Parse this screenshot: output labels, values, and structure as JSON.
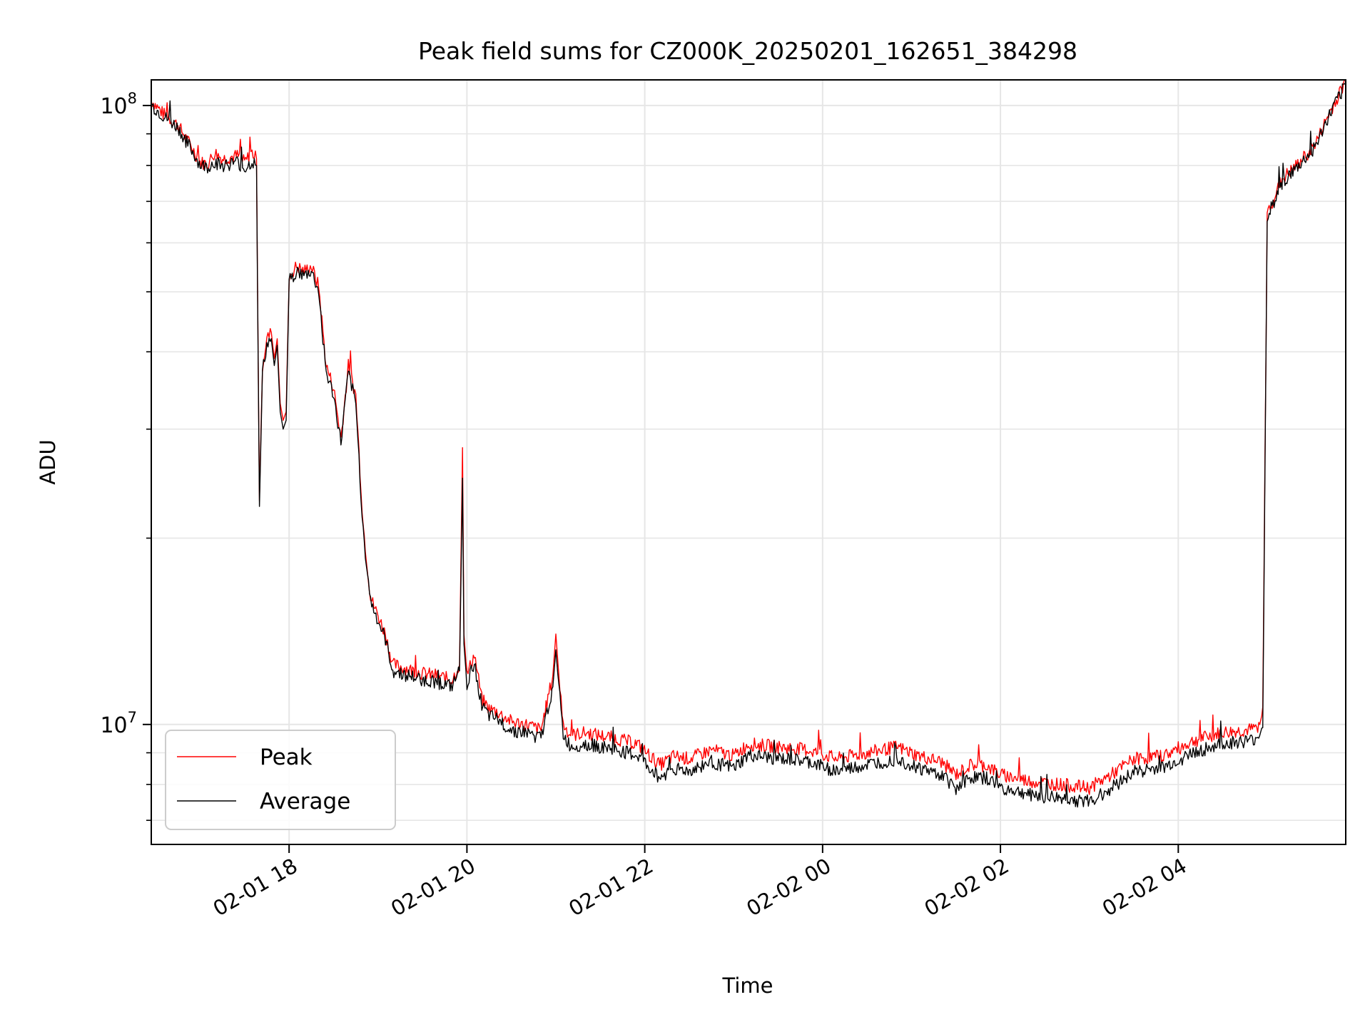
{
  "chart_data": {
    "type": "line",
    "title": "Peak field sums for CZ000K_20250201_162651_384298",
    "xlabel": "Time",
    "ylabel": "ADU",
    "y_scale": "log",
    "grid": true,
    "legend_position": "lower-left",
    "xlim": [
      "2025-02-01 16:27",
      "2025-02-02 05:53"
    ],
    "ylim": [
      6400000,
      110000000
    ],
    "x_ticks": [
      {
        "value": "2025-02-01 18:00",
        "label": "02-01 18"
      },
      {
        "value": "2025-02-01 20:00",
        "label": "02-01 20"
      },
      {
        "value": "2025-02-01 22:00",
        "label": "02-01 22"
      },
      {
        "value": "2025-02-02 00:00",
        "label": "02-02 00"
      },
      {
        "value": "2025-02-02 02:00",
        "label": "02-02 02"
      },
      {
        "value": "2025-02-02 04:00",
        "label": "02-02 04"
      }
    ],
    "y_ticks": [
      {
        "value": 10000000,
        "base": "10",
        "exp": "7"
      },
      {
        "value": 100000000,
        "base": "10",
        "exp": "8"
      }
    ],
    "series": [
      {
        "name": "Peak",
        "color": "#ff0000",
        "x": [
          "2025-02-01 16:27",
          "2025-02-01 16:35",
          "2025-02-01 16:45",
          "2025-02-01 16:55",
          "2025-02-01 17:00",
          "2025-02-01 17:05",
          "2025-02-01 17:10",
          "2025-02-01 17:15",
          "2025-02-01 17:25",
          "2025-02-01 17:30",
          "2025-02-01 17:35",
          "2025-02-01 17:38",
          "2025-02-01 17:40",
          "2025-02-01 17:42",
          "2025-02-01 17:45",
          "2025-02-01 17:48",
          "2025-02-01 17:50",
          "2025-02-01 17:52",
          "2025-02-01 17:54",
          "2025-02-01 17:56",
          "2025-02-01 17:58",
          "2025-02-01 18:00",
          "2025-02-01 18:05",
          "2025-02-01 18:10",
          "2025-02-01 18:15",
          "2025-02-01 18:20",
          "2025-02-01 18:25",
          "2025-02-01 18:30",
          "2025-02-01 18:35",
          "2025-02-01 18:40",
          "2025-02-01 18:45",
          "2025-02-01 18:50",
          "2025-02-01 18:55",
          "2025-02-01 19:00",
          "2025-02-01 19:05",
          "2025-02-01 19:10",
          "2025-02-01 19:20",
          "2025-02-01 19:30",
          "2025-02-01 19:40",
          "2025-02-01 19:50",
          "2025-02-01 19:55",
          "2025-02-01 19:57",
          "2025-02-01 19:58",
          "2025-02-01 20:00",
          "2025-02-01 20:05",
          "2025-02-01 20:10",
          "2025-02-01 20:15",
          "2025-02-01 20:20",
          "2025-02-01 20:30",
          "2025-02-01 20:40",
          "2025-02-01 20:50",
          "2025-02-01 20:58",
          "2025-02-01 21:00",
          "2025-02-01 21:02",
          "2025-02-01 21:05",
          "2025-02-01 21:10",
          "2025-02-01 21:20",
          "2025-02-01 21:40",
          "2025-02-01 21:55",
          "2025-02-01 22:10",
          "2025-02-01 22:20",
          "2025-02-01 22:30",
          "2025-02-01 22:45",
          "2025-02-01 23:00",
          "2025-02-01 23:10",
          "2025-02-01 23:30",
          "2025-02-01 23:50",
          "2025-02-02 00:10",
          "2025-02-02 00:30",
          "2025-02-02 00:50",
          "2025-02-02 01:05",
          "2025-02-02 01:20",
          "2025-02-02 01:30",
          "2025-02-02 01:40",
          "2025-02-02 01:50",
          "2025-02-02 02:00",
          "2025-02-02 02:20",
          "2025-02-02 02:40",
          "2025-02-02 03:00",
          "2025-02-02 03:15",
          "2025-02-02 03:30",
          "2025-02-02 03:50",
          "2025-02-02 04:10",
          "2025-02-02 04:30",
          "2025-02-02 04:50",
          "2025-02-02 04:55",
          "2025-02-02 04:57",
          "2025-02-02 05:00",
          "2025-02-02 05:10",
          "2025-02-02 05:20",
          "2025-02-02 05:30",
          "2025-02-02 05:35",
          "2025-02-02 05:40",
          "2025-02-02 05:50",
          "2025-02-02 05:53"
        ],
        "y": [
          102000000,
          97000000,
          93000000,
          85000000,
          81000000,
          80500000,
          84000000,
          82000000,
          83000000,
          81000000,
          84000000,
          82000000,
          23000000,
          38000000,
          42000000,
          43000000,
          39000000,
          42000000,
          33000000,
          31000000,
          32000000,
          53000000,
          55000000,
          54000000,
          55000000,
          51000000,
          38000000,
          35000000,
          29000000,
          38000000,
          34000000,
          21000000,
          16000000,
          15000000,
          14000000,
          12500000,
          12300000,
          12100000,
          12000000,
          11800000,
          12500000,
          28000000,
          14000000,
          12000000,
          13000000,
          11000000,
          10600000,
          10500000,
          10100000,
          10000000,
          9800000,
          12000000,
          14000000,
          12000000,
          10000000,
          9600000,
          9700000,
          9500000,
          9300000,
          8600000,
          8900000,
          8800000,
          9100000,
          8900000,
          9300000,
          9200000,
          9100000,
          8800000,
          9000000,
          9200000,
          8900000,
          8700000,
          8300000,
          8600000,
          8600000,
          8300000,
          8100000,
          8000000,
          7900000,
          8300000,
          8800000,
          8900000,
          9400000,
          9700000,
          9800000,
          10000000,
          10500000,
          67000000,
          76000000,
          80000000,
          85000000,
          89000000,
          95000000,
          106000000,
          110000000
        ]
      },
      {
        "name": "Average",
        "color": "#000000",
        "x": [
          "2025-02-01 16:27",
          "2025-02-01 16:35",
          "2025-02-01 16:45",
          "2025-02-01 16:55",
          "2025-02-01 17:00",
          "2025-02-01 17:05",
          "2025-02-01 17:10",
          "2025-02-01 17:15",
          "2025-02-01 17:25",
          "2025-02-01 17:30",
          "2025-02-01 17:35",
          "2025-02-01 17:38",
          "2025-02-01 17:40",
          "2025-02-01 17:42",
          "2025-02-01 17:45",
          "2025-02-01 17:48",
          "2025-02-01 17:50",
          "2025-02-01 17:52",
          "2025-02-01 17:54",
          "2025-02-01 17:56",
          "2025-02-01 17:58",
          "2025-02-01 18:00",
          "2025-02-01 18:05",
          "2025-02-01 18:10",
          "2025-02-01 18:15",
          "2025-02-01 18:20",
          "2025-02-01 18:25",
          "2025-02-01 18:30",
          "2025-02-01 18:35",
          "2025-02-01 18:40",
          "2025-02-01 18:45",
          "2025-02-01 18:50",
          "2025-02-01 18:55",
          "2025-02-01 19:00",
          "2025-02-01 19:05",
          "2025-02-01 19:10",
          "2025-02-01 19:20",
          "2025-02-01 19:30",
          "2025-02-01 19:40",
          "2025-02-01 19:50",
          "2025-02-01 19:55",
          "2025-02-01 19:57",
          "2025-02-01 19:58",
          "2025-02-01 20:00",
          "2025-02-01 20:05",
          "2025-02-01 20:10",
          "2025-02-01 20:15",
          "2025-02-01 20:20",
          "2025-02-01 20:30",
          "2025-02-01 20:40",
          "2025-02-01 20:50",
          "2025-02-01 20:58",
          "2025-02-01 21:00",
          "2025-02-01 21:02",
          "2025-02-01 21:05",
          "2025-02-01 21:10",
          "2025-02-01 21:20",
          "2025-02-01 21:40",
          "2025-02-01 21:55",
          "2025-02-01 22:10",
          "2025-02-01 22:20",
          "2025-02-01 22:30",
          "2025-02-01 22:45",
          "2025-02-01 23:00",
          "2025-02-01 23:10",
          "2025-02-01 23:30",
          "2025-02-01 23:50",
          "2025-02-02 00:10",
          "2025-02-02 00:30",
          "2025-02-02 00:50",
          "2025-02-02 01:05",
          "2025-02-02 01:20",
          "2025-02-02 01:30",
          "2025-02-02 01:40",
          "2025-02-02 01:50",
          "2025-02-02 02:00",
          "2025-02-02 02:20",
          "2025-02-02 02:40",
          "2025-02-02 03:00",
          "2025-02-02 03:15",
          "2025-02-02 03:30",
          "2025-02-02 03:50",
          "2025-02-02 04:10",
          "2025-02-02 04:30",
          "2025-02-02 04:50",
          "2025-02-02 04:55",
          "2025-02-02 04:57",
          "2025-02-02 05:00",
          "2025-02-02 05:10",
          "2025-02-02 05:20",
          "2025-02-02 05:30",
          "2025-02-02 05:35",
          "2025-02-02 05:40",
          "2025-02-02 05:50",
          "2025-02-02 05:53"
        ],
        "y": [
          100000000,
          96000000,
          92000000,
          84000000,
          80000000,
          79500000,
          81000000,
          80000000,
          81000000,
          79000000,
          81000000,
          80000000,
          22500000,
          37000000,
          41000000,
          42000000,
          38000000,
          41000000,
          32000000,
          30000000,
          31000000,
          52000000,
          54000000,
          53000000,
          54000000,
          50000000,
          37000000,
          34000000,
          28500000,
          37000000,
          33000000,
          20500000,
          15800000,
          14700000,
          13700000,
          12200000,
          12000000,
          11800000,
          11700000,
          11500000,
          12200000,
          25000000,
          13500000,
          11600000,
          12600000,
          10700000,
          10300000,
          10200000,
          9800000,
          9700000,
          9500000,
          11500000,
          13200000,
          11500000,
          9600000,
          9200000,
          9300000,
          9100000,
          8900000,
          8200000,
          8500000,
          8400000,
          8700000,
          8500000,
          8900000,
          8800000,
          8700000,
          8400000,
          8600000,
          8800000,
          8500000,
          8300000,
          7900000,
          8200000,
          8200000,
          7900000,
          7700000,
          7600000,
          7500000,
          7900000,
          8400000,
          8500000,
          9000000,
          9300000,
          9400000,
          9600000,
          10000000,
          66000000,
          75000000,
          79000000,
          84000000,
          88000000,
          94000000,
          105000000,
          109000000
        ]
      }
    ]
  }
}
